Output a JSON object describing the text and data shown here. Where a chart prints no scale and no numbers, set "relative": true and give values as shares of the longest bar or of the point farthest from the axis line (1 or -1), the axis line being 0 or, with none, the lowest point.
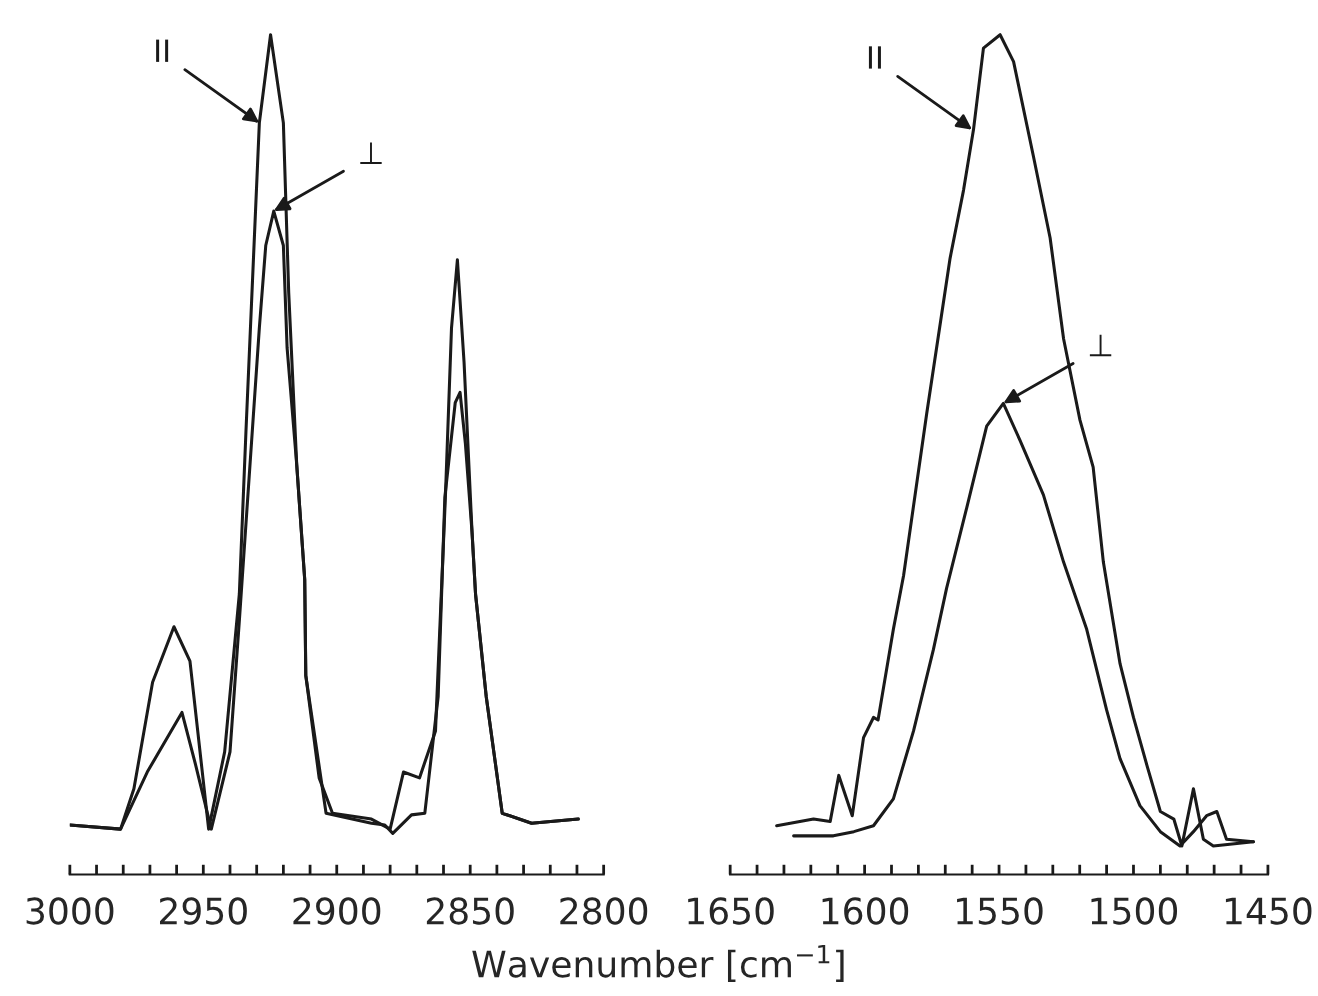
{
  "chart_data": [
    {
      "type": "line",
      "relative": true,
      "xlabel": "Wavenumber [cm$^{−1}$]",
      "xlim": [
        3000,
        2800
      ],
      "xticks": [
        3000,
        {
          "value": 2990,
          "label": null
        },
        {
          "value": 2980,
          "label": null
        },
        {
          "value": 2970,
          "label": null
        },
        {
          "value": 2960,
          "label": null
        },
        2950,
        {
          "value": 2940,
          "label": null
        },
        {
          "value": 2930,
          "label": null
        },
        {
          "value": 2920,
          "label": null
        },
        {
          "value": 2910,
          "label": null
        },
        2900,
        {
          "value": 2890,
          "label": null
        },
        {
          "value": 2880,
          "label": null
        },
        {
          "value": 2870,
          "label": null
        },
        {
          "value": 2860,
          "label": null
        },
        2850,
        {
          "value": 2840,
          "label": null
        },
        {
          "value": 2830,
          "label": null
        },
        {
          "value": 2820,
          "label": null
        },
        {
          "value": 2810,
          "label": null
        },
        2800
      ],
      "series": [
        {
          "color": "#1a1a1a",
          "x": [
            3000,
            2981,
            2976,
            2969,
            2961,
            2955,
            2948,
            2942,
            2936.5,
            2934,
            2929,
            2924.8,
            2920,
            2918,
            2915,
            2912,
            2911.6,
            2906.6,
            2901.6,
            2887,
            2880,
            2875,
            2869,
            2863,
            2859.3,
            2857,
            2854.8,
            2852.3,
            2849.3,
            2848,
            2844,
            2838,
            2827,
            2809.5
          ],
          "values": [
            0.059,
            0.054,
            0.102,
            0.229,
            0.295,
            0.254,
            0.054,
            0.146,
            0.334,
            0.529,
            0.895,
            1.0,
            0.895,
            0.693,
            0.488,
            0.351,
            0.237,
            0.115,
            0.073,
            0.066,
            0.054,
            0.122,
            0.115,
            0.171,
            0.449,
            0.651,
            0.732,
            0.61,
            0.407,
            0.334,
            0.212,
            0.073,
            0.061,
            0.066
          ]
        },
        {
          "color": "#1a1a1a",
          "x": [
            3000,
            2981,
            2971,
            2958,
            2953,
            2947,
            2940,
            2936.5,
            2929,
            2926.6,
            2923.6,
            2920,
            2918.6,
            2915,
            2912,
            2911.6,
            2904,
            2887,
            2882,
            2879,
            2872,
            2867,
            2862,
            2859.5,
            2855.6,
            2853.8,
            2851.8,
            2849.3,
            2848,
            2844,
            2838,
            2827,
            2809.5
          ],
          "values": [
            0.059,
            0.054,
            0.122,
            0.193,
            0.132,
            0.054,
            0.146,
            0.302,
            0.651,
            0.749,
            0.79,
            0.749,
            0.627,
            0.488,
            0.351,
            0.237,
            0.073,
            0.061,
            0.059,
            0.049,
            0.071,
            0.073,
            0.212,
            0.449,
            0.562,
            0.574,
            0.513,
            0.407,
            0.334,
            0.212,
            0.073,
            0.061,
            0.066
          ]
        }
      ],
      "annotations": [
        {
          "text": "II",
          "x": 2929,
          "y": 0.895
        },
        {
          "text": "⊥",
          "x": 2923.6,
          "y": 0.79
        }
      ]
    },
    {
      "type": "line",
      "relative": true,
      "xlim": [
        1650,
        1450
      ],
      "xticks": [
        1650,
        {
          "value": 1640,
          "label": null
        },
        {
          "value": 1630,
          "label": null
        },
        {
          "value": 1620,
          "label": null
        },
        {
          "value": 1610,
          "label": null
        },
        1600,
        {
          "value": 1590,
          "label": null
        },
        {
          "value": 1580,
          "label": null
        },
        {
          "value": 1570,
          "label": null
        },
        {
          "value": 1560,
          "label": null
        },
        1550,
        {
          "value": 1540,
          "label": null
        },
        {
          "value": 1530,
          "label": null
        },
        {
          "value": 1520,
          "label": null
        },
        {
          "value": 1510,
          "label": null
        },
        1500,
        {
          "value": 1490,
          "label": null
        },
        {
          "value": 1480,
          "label": null
        },
        {
          "value": 1470,
          "label": null
        },
        {
          "value": 1460,
          "label": null
        },
        1450
      ],
      "series": [
        {
          "color": "#1a1a1a",
          "x": [
            1632.7,
            1619,
            1612.8,
            1609.6,
            1604.6,
            1600.4,
            1596.7,
            1595,
            1589.3,
            1585.5,
            1576.9,
            1568.2,
            1563.2,
            1559.5,
            1555.8,
            1549.6,
            1544.6,
            1537.2,
            1531,
            1526,
            1519.9,
            1515,
            1511.2,
            1505,
            1500,
            1495,
            1490,
            1485,
            1482,
            1477.7,
            1474,
            1470.3,
            1455.4
          ],
          "values": [
            0.058,
            0.066,
            0.063,
            0.118,
            0.07,
            0.163,
            0.187,
            0.184,
            0.292,
            0.356,
            0.549,
            0.734,
            0.815,
            0.887,
            0.984,
            1.0,
            0.968,
            0.855,
            0.758,
            0.638,
            0.541,
            0.485,
            0.372,
            0.251,
            0.187,
            0.13,
            0.075,
            0.066,
            0.034,
            0.102,
            0.042,
            0.034,
            0.039
          ]
        },
        {
          "color": "#1a1a1a",
          "x": [
            1626.4,
            1611.6,
            1604,
            1596.7,
            1589.3,
            1581.8,
            1574.4,
            1569.5,
            1562,
            1554.6,
            1548.4,
            1542.2,
            1533.5,
            1526,
            1517.4,
            1510,
            1505,
            1497.6,
            1490,
            1482.7,
            1477.7,
            1472.8,
            1469,
            1465.4,
            1455.4
          ],
          "values": [
            0.046,
            0.046,
            0.051,
            0.058,
            0.09,
            0.171,
            0.268,
            0.341,
            0.437,
            0.534,
            0.561,
            0.517,
            0.452,
            0.372,
            0.292,
            0.196,
            0.138,
            0.082,
            0.051,
            0.034,
            0.051,
            0.07,
            0.075,
            0.042,
            0.039
          ]
        }
      ],
      "annotations": [
        {
          "text": "II",
          "x": 1560,
          "y": 0.887
        },
        {
          "text": "⊥",
          "x": 1548.4,
          "y": 0.561
        }
      ]
    }
  ]
}
